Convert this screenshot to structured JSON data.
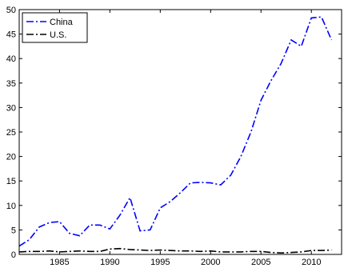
{
  "chart_data": {
    "type": "line",
    "title": "",
    "xlabel": "",
    "ylabel": "",
    "xlim": [
      1981,
      2013
    ],
    "ylim": [
      0,
      50
    ],
    "xticks": [
      1985,
      1990,
      1995,
      2000,
      2005,
      2010
    ],
    "yticks": [
      0,
      5,
      10,
      15,
      20,
      25,
      30,
      35,
      40,
      45,
      50
    ],
    "grid": false,
    "legend_position": "top-left",
    "x": [
      1981,
      1982,
      1983,
      1984,
      1985,
      1986,
      1987,
      1988,
      1989,
      1990,
      1991,
      1992,
      1993,
      1994,
      1995,
      1996,
      1997,
      1998,
      1999,
      2000,
      2001,
      2002,
      2003,
      2004,
      2005,
      2006,
      2007,
      2008,
      2009,
      2010,
      2011,
      2012
    ],
    "series": [
      {
        "name": "China",
        "color": "#0000ff",
        "dash": "dashdot",
        "values": [
          1.7,
          3.0,
          5.6,
          6.5,
          6.7,
          4.3,
          3.8,
          6.0,
          6.0,
          5.2,
          8.0,
          11.6,
          4.8,
          5.0,
          9.5,
          10.8,
          12.6,
          14.6,
          14.7,
          14.6,
          14.2,
          16.2,
          20.0,
          25.0,
          31.5,
          35.5,
          39.0,
          43.8,
          42.5,
          48.3,
          48.5,
          43.8
        ]
      },
      {
        "name": "U.S.",
        "color": "#000000",
        "dash": "dashdot",
        "values": [
          0.5,
          0.6,
          0.6,
          0.7,
          0.5,
          0.6,
          0.7,
          0.6,
          0.6,
          1.1,
          1.2,
          1.0,
          0.9,
          0.8,
          0.9,
          0.8,
          0.7,
          0.7,
          0.6,
          0.7,
          0.5,
          0.5,
          0.5,
          0.6,
          0.6,
          0.4,
          0.3,
          0.4,
          0.5,
          0.8,
          0.8,
          0.9
        ]
      }
    ]
  }
}
